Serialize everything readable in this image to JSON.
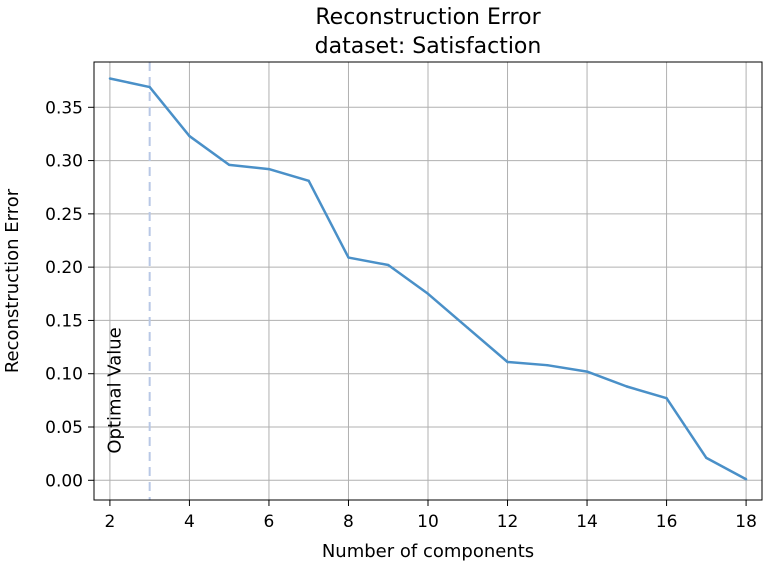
{
  "chart_data": {
    "type": "line",
    "title": "Reconstruction Error",
    "subtitle": "dataset: Satisfaction",
    "xlabel": "Number of components",
    "ylabel": "Reconstruction Error",
    "xlim": [
      1.6,
      18.4
    ],
    "ylim": [
      -0.0185,
      0.3925
    ],
    "x_ticks": [
      2,
      4,
      6,
      8,
      10,
      12,
      14,
      16,
      18
    ],
    "y_ticks": [
      0.0,
      0.05,
      0.1,
      0.15,
      0.2,
      0.25,
      0.3,
      0.35
    ],
    "grid": true,
    "series": [
      {
        "x": [
          2,
          3,
          4,
          5,
          6,
          7,
          8,
          9,
          10,
          11,
          12,
          13,
          14,
          15,
          16,
          17,
          18
        ],
        "values": [
          0.377,
          0.369,
          0.323,
          0.296,
          0.292,
          0.281,
          0.209,
          0.202,
          0.175,
          0.143,
          0.111,
          0.108,
          0.102,
          0.088,
          0.077,
          0.021,
          0.001
        ],
        "color": "#4a90c8"
      }
    ],
    "annotation": {
      "type": "vline",
      "x": 3,
      "text": "Optimal Value",
      "color": "#b8c8e6"
    }
  }
}
